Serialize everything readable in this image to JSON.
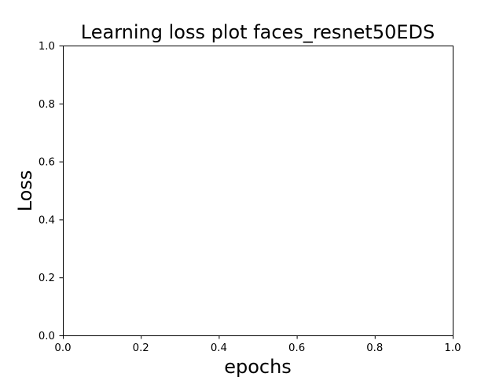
{
  "chart_data": {
    "type": "line",
    "title": "Learning loss plot faces_resnet50EDS",
    "xlabel": "epochs",
    "ylabel": "Loss",
    "xlim": [
      0.0,
      1.0
    ],
    "ylim": [
      0.0,
      1.0
    ],
    "xticks": [
      0.0,
      0.2,
      0.4,
      0.6,
      0.8,
      1.0
    ],
    "yticks": [
      0.0,
      0.2,
      0.4,
      0.6,
      0.8,
      1.0
    ],
    "xtick_labels": [
      "0.0",
      "0.2",
      "0.4",
      "0.6",
      "0.8",
      "1.0"
    ],
    "ytick_labels": [
      "0.0",
      "0.2",
      "0.4",
      "0.6",
      "0.8",
      "1.0"
    ],
    "series": [],
    "grid": false,
    "legend": "none"
  }
}
